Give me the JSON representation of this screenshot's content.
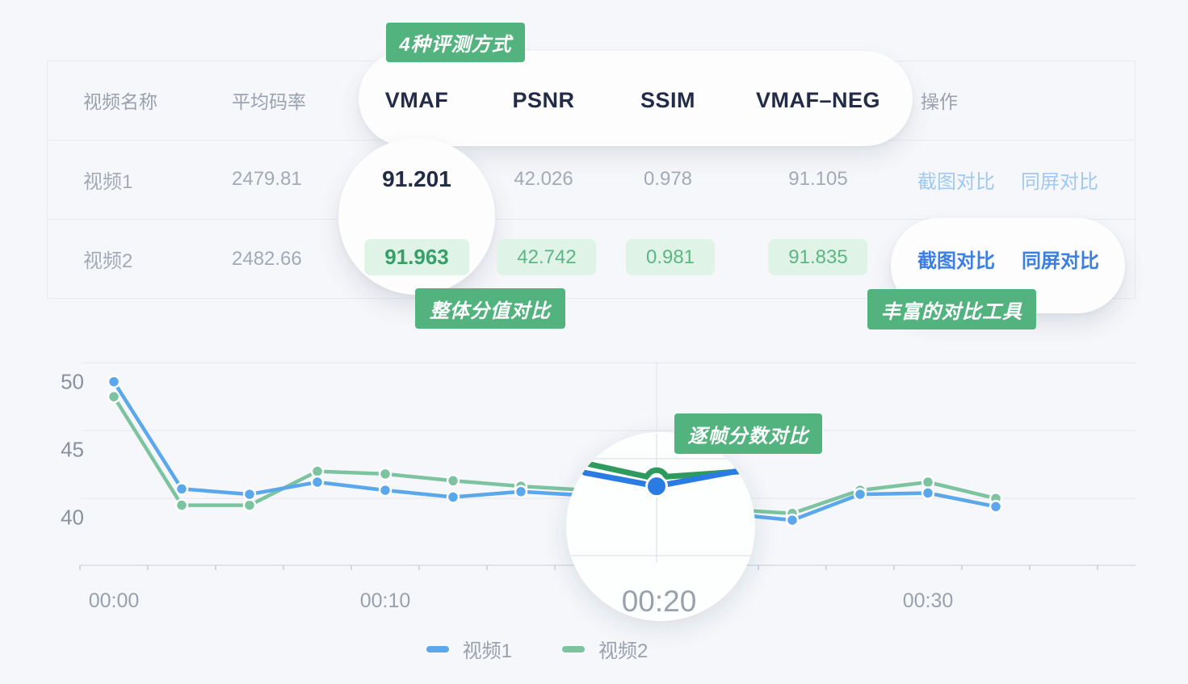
{
  "callouts": {
    "methods": "4种评测方式",
    "overall": "整体分值对比",
    "tools": "丰富的对比工具",
    "per_frame": "逐帧分数对比"
  },
  "table": {
    "headers": {
      "name": "视频名称",
      "bitrate": "平均码率",
      "vmaf": "VMAF",
      "psnr": "PSNR",
      "ssim": "SSIM",
      "vmaf_neg": "VMAF–NEG",
      "actions": "操作"
    },
    "rows": [
      {
        "name": "视频1",
        "bitrate": "2479.81",
        "vmaf": "91.201",
        "psnr": "42.026",
        "ssim": "0.978",
        "vmaf_neg": "91.105",
        "action1": "截图对比",
        "action2": "同屏对比"
      },
      {
        "name": "视频2",
        "bitrate": "2482.66",
        "vmaf": "91.963",
        "psnr": "42.742",
        "ssim": "0.981",
        "vmaf_neg": "91.835",
        "action1": "截图对比",
        "action2": "同屏对比"
      }
    ]
  },
  "chart_data": {
    "type": "line",
    "x_seconds": [
      0,
      2.5,
      5,
      7.5,
      10,
      12.5,
      15,
      17.5,
      20,
      22.5,
      25,
      27.5,
      30,
      32.5
    ],
    "x_tick_labels": [
      "00:00",
      "00:10",
      "00:20",
      "00:30"
    ],
    "y_tick_labels": [
      "50",
      "45",
      "40"
    ],
    "y_tick_values": [
      50,
      45,
      40
    ],
    "ylim": [
      36.5,
      51.5
    ],
    "gridline_values": [
      51.4,
      46.4,
      41.4
    ],
    "series": [
      {
        "name": "视频1",
        "color": "#5aa7ec",
        "values": [
          50.0,
          42.1,
          41.7,
          42.6,
          42.0,
          41.5,
          41.9,
          41.6,
          41.0,
          40.3,
          39.8,
          41.7,
          41.8,
          40.8
        ]
      },
      {
        "name": "视频2",
        "color": "#7cc3a0",
        "values": [
          48.9,
          40.9,
          40.9,
          43.4,
          43.2,
          42.7,
          42.3,
          42.0,
          41.3,
          40.6,
          40.3,
          42.0,
          42.6,
          41.4
        ]
      }
    ],
    "hidden_point_indices": [
      7,
      8,
      9
    ],
    "lens": {
      "label": "00:20",
      "center_seconds": 20,
      "series": [
        {
          "name": "视频1",
          "color": "#2b7ce2",
          "values": [
            43.3,
            42.3,
            43.5
          ]
        },
        {
          "name": "视频2",
          "color": "#2f9a5e",
          "values": [
            44.0,
            43.0,
            43.4
          ]
        }
      ]
    },
    "legend": [
      "视频1",
      "视频2"
    ]
  },
  "colors": {
    "badge_green": "#52b37e",
    "pill_green_bg": "#e0f3e7",
    "pill_green_text": "#35a067",
    "link_blue_light": "#9fc9f2",
    "link_blue_bold": "#3b7fe3",
    "series1_blue": "#5aa7ec",
    "series2_green": "#7cc3a0",
    "lens_blue": "#2b7ce2",
    "lens_green": "#2f9a5e",
    "text_dark": "#232c47",
    "text_gray": "#a4aab5",
    "background": "#f6f7fa"
  }
}
